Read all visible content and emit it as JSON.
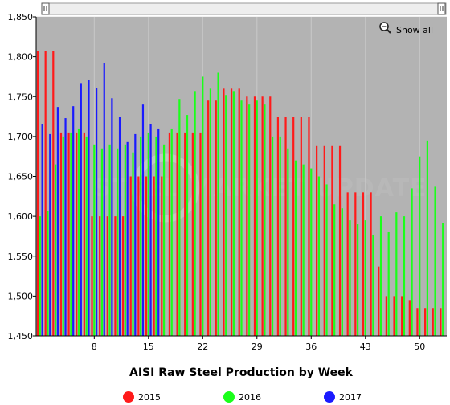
{
  "show_all_label": "Show all",
  "watermark": "STEEL MARKET UPDATE",
  "colors": {
    "plot_bg": "#b3b3b3",
    "series_2015": "#ff1a1a",
    "series_2016": "#1aff1a",
    "series_2017": "#1a1aff"
  },
  "chart_data": {
    "type": "bar",
    "title": "AISI Raw Steel Production by Week",
    "xlabel": "AISI Raw Steel Production by Week",
    "ylabel": "",
    "ylim": [
      1450,
      1850
    ],
    "y_ticks": [
      "1,450",
      "1,500",
      "1,550",
      "1,600",
      "1,650",
      "1,700",
      "1,750",
      "1,800",
      "1,850"
    ],
    "x_ticks": [
      8,
      15,
      22,
      29,
      36,
      43,
      50
    ],
    "xlim": [
      1,
      53
    ],
    "grid": true,
    "legend_position": "bottom",
    "series": [
      {
        "name": "2015",
        "color": "#ff1a1a",
        "weeks": [
          1,
          2,
          3,
          4,
          5,
          6,
          7,
          8,
          9,
          10,
          11,
          12,
          13,
          14,
          15,
          16,
          17,
          18,
          19,
          20,
          21,
          22,
          23,
          24,
          25,
          26,
          27,
          28,
          29,
          30,
          31,
          32,
          33,
          34,
          35,
          36,
          37,
          38,
          39,
          40,
          41,
          42,
          43,
          44,
          45,
          46,
          47,
          48,
          49,
          50,
          51,
          52,
          53
        ],
        "values": [
          1807,
          1807,
          1807,
          1705,
          1705,
          1705,
          1705,
          1600,
          1600,
          1600,
          1600,
          1600,
          1650,
          1650,
          1650,
          1650,
          1650,
          1705,
          1705,
          1705,
          1705,
          1705,
          1745,
          1745,
          1760,
          1760,
          1760,
          1750,
          1750,
          1750,
          1750,
          1725,
          1725,
          1725,
          1725,
          1725,
          1688,
          1688,
          1688,
          1688,
          1630,
          1630,
          1630,
          1630,
          1537,
          1500,
          1500,
          1500,
          1495,
          1485,
          1485,
          1485,
          1485
        ]
      },
      {
        "name": "2016",
        "color": "#1aff1a",
        "weeks": [
          1,
          2,
          3,
          4,
          5,
          6,
          7,
          8,
          9,
          10,
          11,
          12,
          13,
          14,
          15,
          16,
          17,
          18,
          19,
          20,
          21,
          22,
          23,
          24,
          25,
          26,
          27,
          28,
          29,
          30,
          31,
          32,
          33,
          34,
          35,
          36,
          37,
          38,
          39,
          40,
          41,
          42,
          43,
          44,
          45,
          46,
          47,
          48,
          49,
          50,
          51,
          52,
          53
        ],
        "values": [
          1600,
          1607,
          1665,
          1700,
          1705,
          1710,
          1700,
          1690,
          1685,
          1690,
          1685,
          1690,
          1680,
          1700,
          1705,
          1700,
          1690,
          1710,
          1747,
          1727,
          1757,
          1775,
          1760,
          1780,
          1752,
          1757,
          1745,
          1740,
          1745,
          1740,
          1700,
          1700,
          1685,
          1670,
          1665,
          1660,
          1650,
          1640,
          1615,
          1610,
          1595,
          1590,
          1595,
          1577,
          1600,
          1580,
          1605,
          1600,
          1635,
          1675,
          1695,
          1637,
          1592
        ]
      },
      {
        "name": "2017",
        "color": "#1a1aff",
        "weeks": [
          1,
          2,
          3,
          4,
          5,
          6,
          7,
          8,
          9,
          10,
          11,
          12,
          13,
          14,
          15,
          16
        ],
        "values": [
          1716,
          1703,
          1737,
          1723,
          1738,
          1767,
          1771,
          1761,
          1792,
          1748,
          1725,
          1693,
          1703,
          1740,
          1716,
          1710
        ]
      }
    ]
  }
}
